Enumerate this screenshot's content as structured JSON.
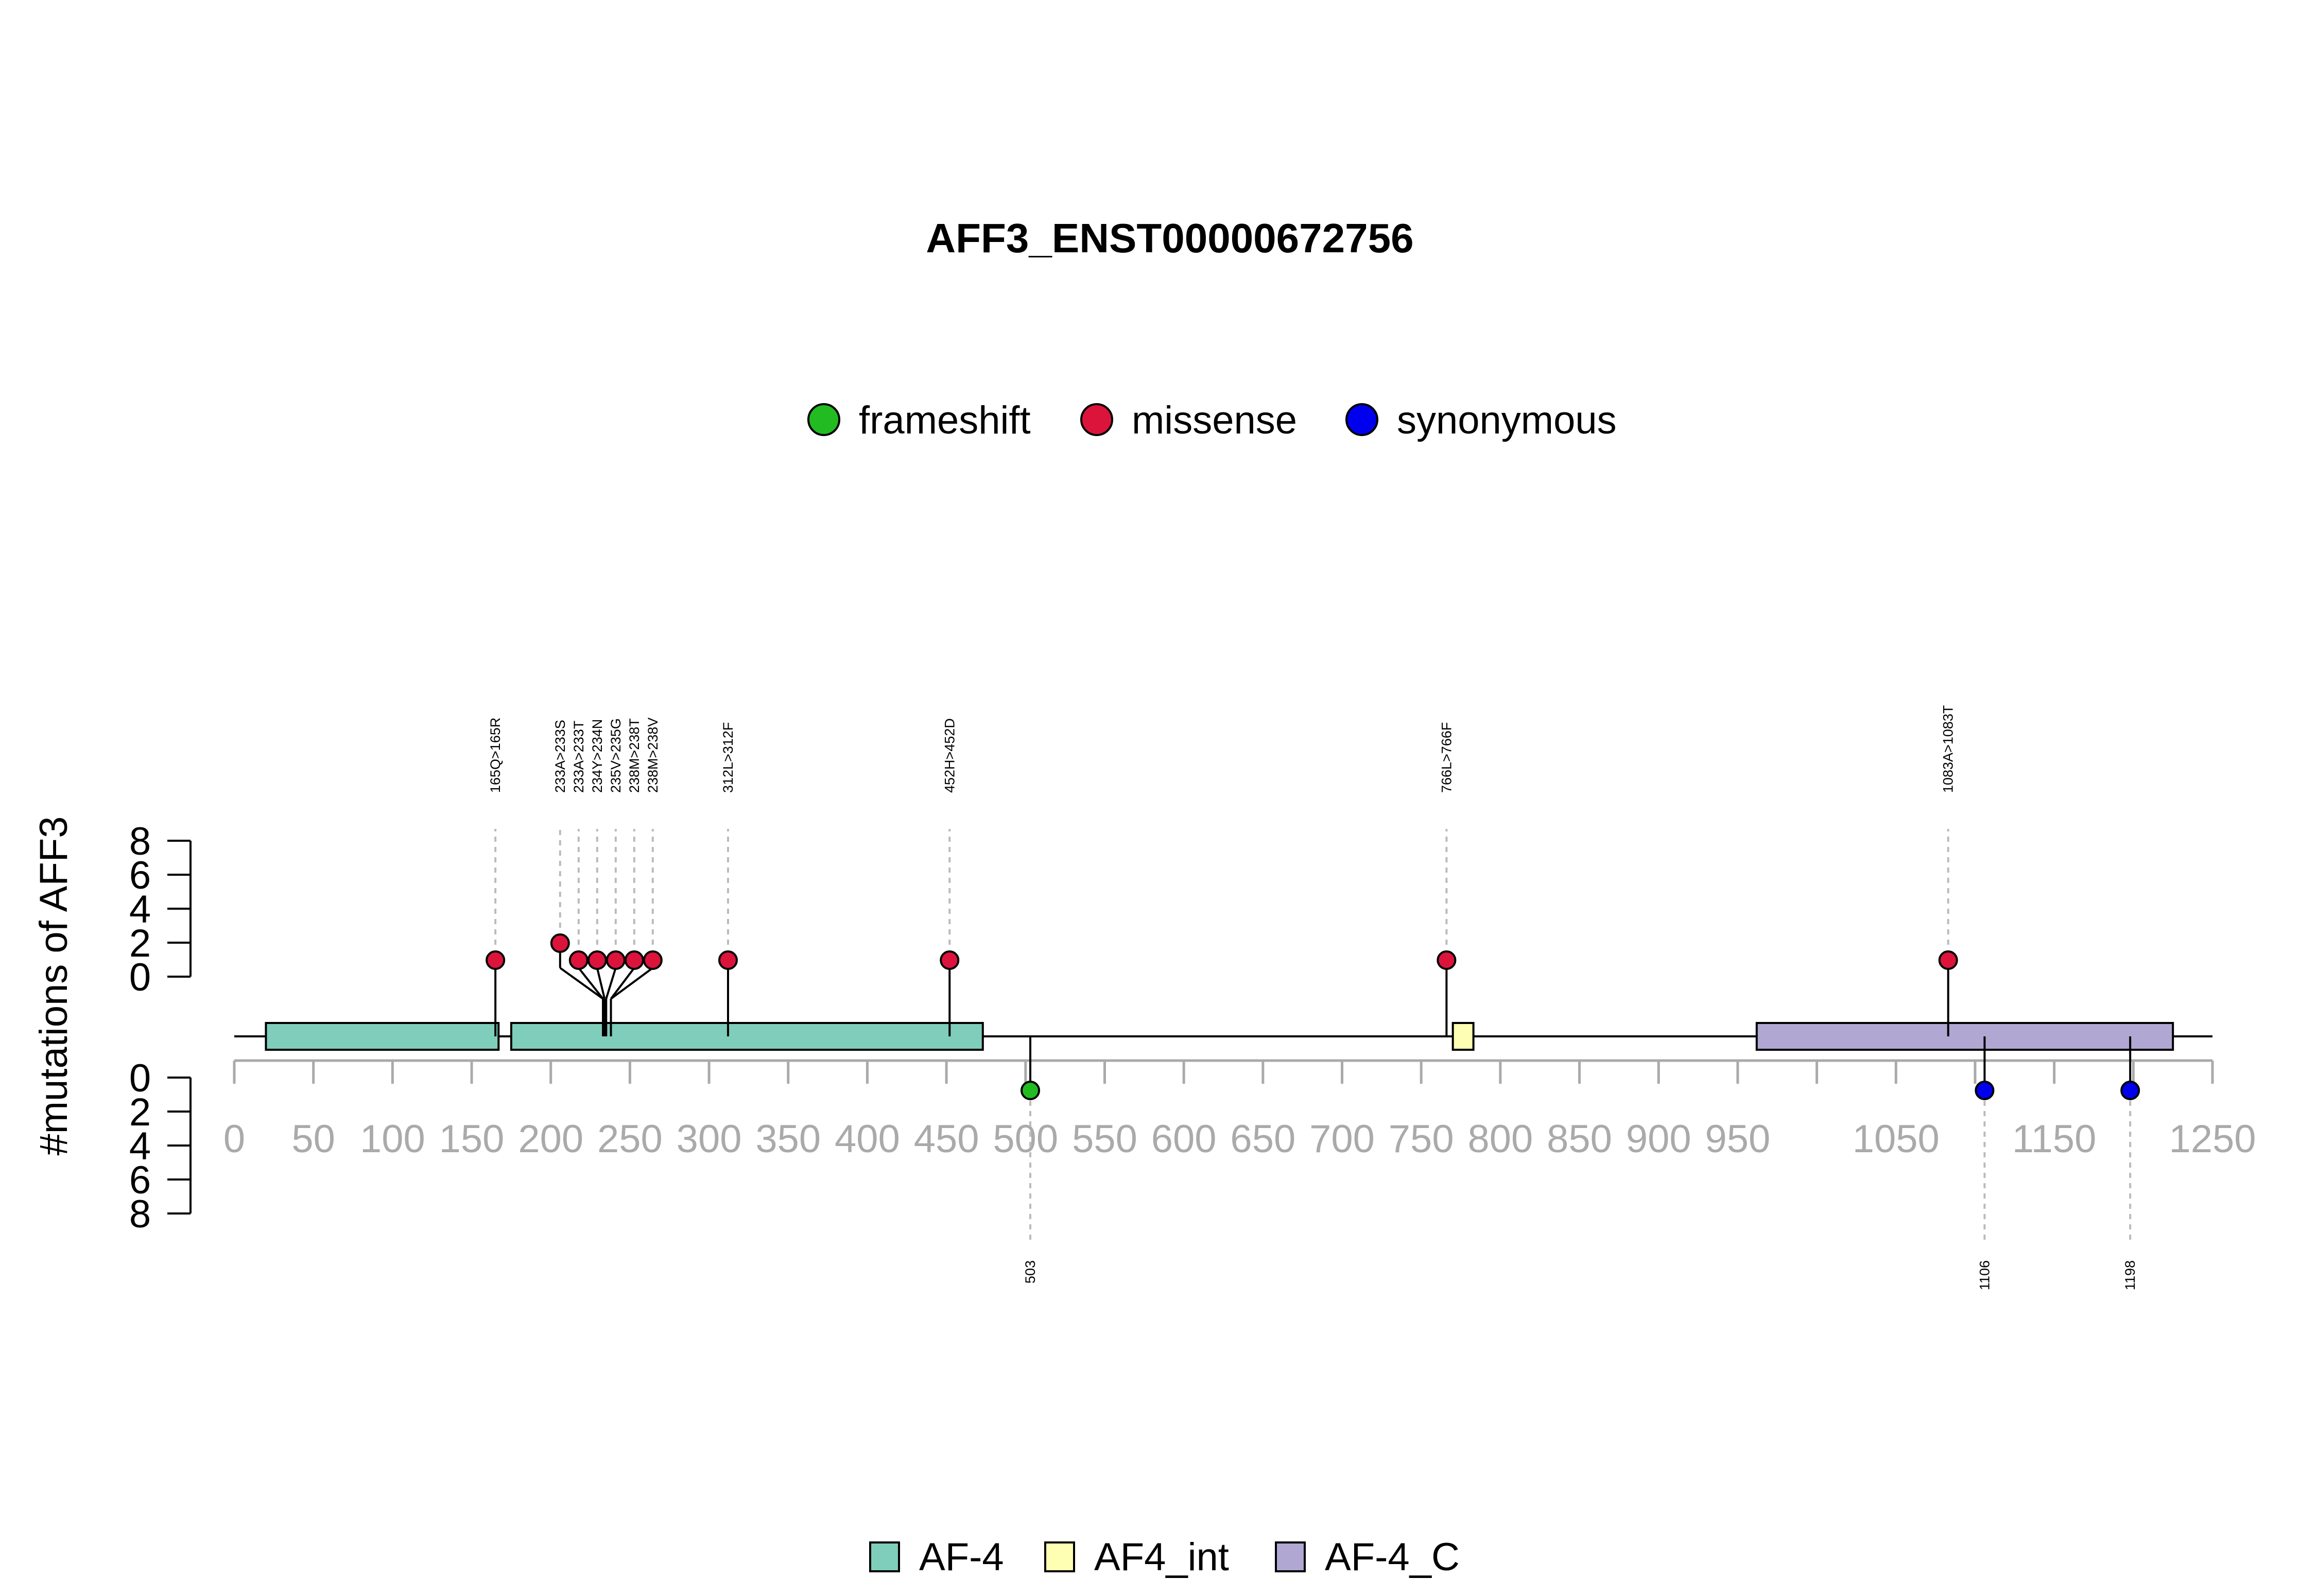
{
  "chart_data": {
    "type": "lollipop",
    "title": "AFF3_ENST00000672756",
    "ylabel": "#mutations of AFF3",
    "xlim": [
      0,
      1250
    ],
    "x_ticks": [
      0,
      50,
      100,
      150,
      200,
      250,
      300,
      350,
      400,
      450,
      500,
      550,
      600,
      650,
      700,
      750,
      800,
      850,
      900,
      950,
      1000,
      1050,
      1100,
      1150,
      1200,
      1250
    ],
    "x_tick_labels": [
      "0",
      "50",
      "100",
      "150",
      "200",
      "250",
      "300",
      "350",
      "400",
      "450",
      "500",
      "550",
      "600",
      "650",
      "700",
      "750",
      "800",
      "850",
      "900",
      "950",
      "",
      "1050",
      "",
      "1150",
      "",
      "1250"
    ],
    "y_ticks_upper": [
      "8",
      "6",
      "4",
      "2",
      "0"
    ],
    "y_ticks_lower": [
      "0",
      "2",
      "4",
      "6",
      "8"
    ],
    "ylim": [
      0,
      8
    ],
    "mutation_legend": [
      {
        "name": "frameshift",
        "color": "#22BB22"
      },
      {
        "name": "missense",
        "color": "#DC143C"
      },
      {
        "name": "synonymous",
        "color": "#0000EE"
      }
    ],
    "domain_legend": [
      {
        "name": "AF-4",
        "color": "#7FCDBB"
      },
      {
        "name": "AF4_int",
        "color": "#FFFFB3"
      },
      {
        "name": "AF-4_C",
        "color": "#B0A8D2"
      }
    ],
    "domains": [
      {
        "name": "AF-4",
        "start": 20,
        "end": 167,
        "color": "#7FCDBB"
      },
      {
        "name": "AF-4",
        "start": 175,
        "end": 473,
        "color": "#7FCDBB"
      },
      {
        "name": "AF4_int",
        "start": 770,
        "end": 783,
        "color": "#FFFFB3"
      },
      {
        "name": "AF-4_C",
        "start": 962,
        "end": 1225,
        "color": "#B0A8D2"
      }
    ],
    "upper_mutations": [
      {
        "label": "165Q>165R",
        "position": 165,
        "count": 1,
        "type": "missense"
      },
      {
        "label": "233A>233S",
        "position": 233,
        "count": 2,
        "type": "missense"
      },
      {
        "label": "233A>233T",
        "position": 233,
        "count": 1,
        "type": "missense"
      },
      {
        "label": "234Y>234N",
        "position": 234,
        "count": 1,
        "type": "missense"
      },
      {
        "label": "235V>235G",
        "position": 235,
        "count": 1,
        "type": "missense"
      },
      {
        "label": "238M>238T",
        "position": 238,
        "count": 1,
        "type": "missense"
      },
      {
        "label": "238M>238V",
        "position": 238,
        "count": 1,
        "type": "missense"
      },
      {
        "label": "312L>312F",
        "position": 312,
        "count": 1,
        "type": "missense"
      },
      {
        "label": "452H>452D",
        "position": 452,
        "count": 1,
        "type": "missense"
      },
      {
        "label": "766L>766F",
        "position": 766,
        "count": 1,
        "type": "missense"
      },
      {
        "label": "1083A>1083T",
        "position": 1083,
        "count": 1,
        "type": "missense"
      }
    ],
    "lower_mutations": [
      {
        "label": "503",
        "position": 503,
        "count": 1,
        "type": "frameshift"
      },
      {
        "label": "1106",
        "position": 1106,
        "count": 1,
        "type": "synonymous"
      },
      {
        "label": "1198",
        "position": 1198,
        "count": 1,
        "type": "synonymous"
      }
    ]
  }
}
